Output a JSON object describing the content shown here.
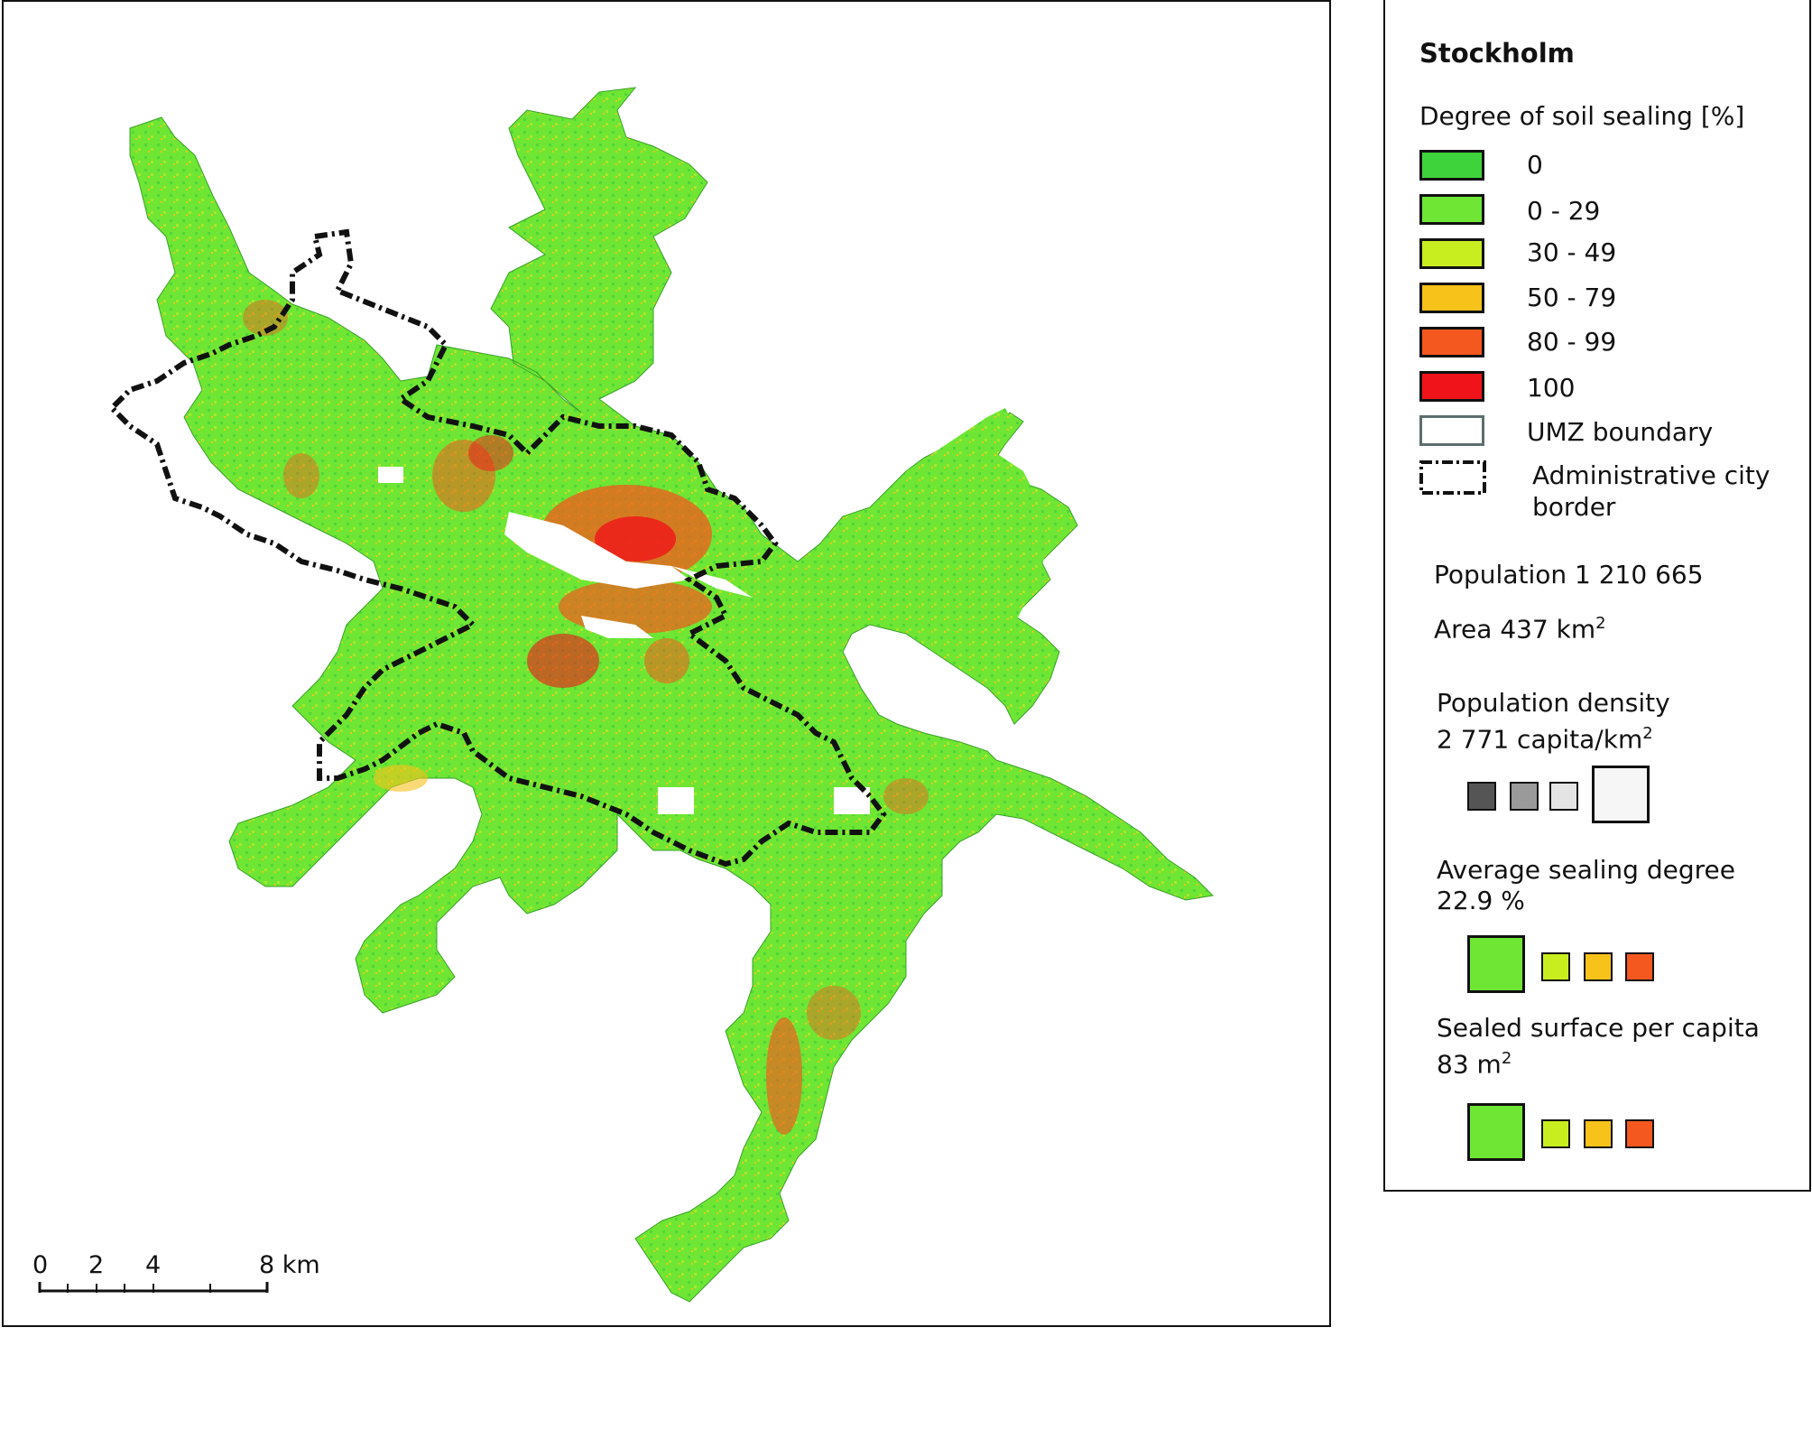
{
  "map": {
    "scalebar": {
      "ticks": [
        "0",
        "2",
        "4",
        "8 km"
      ]
    }
  },
  "legend": {
    "title": "Stockholm",
    "sealing_heading": "Degree of soil sealing [%]",
    "classes": [
      {
        "label": "0",
        "color": "#3fd33b"
      },
      {
        "label": "0 - 29",
        "color": "#6ee633"
      },
      {
        "label": "30 - 49",
        "color": "#c8ee20"
      },
      {
        "label": "50 - 79",
        "color": "#f7c21a"
      },
      {
        "label": "80 - 99",
        "color": "#f4581e"
      },
      {
        "label": "100",
        "color": "#f0141a"
      }
    ],
    "umz_label": "UMZ boundary",
    "admin_label_line1": "Administrative city",
    "admin_label_line2": "border",
    "population_label": "Population 1 210 665",
    "area_label": "Area 437 km",
    "area_sup": "2",
    "pop_density_heading": "Population density",
    "pop_density_value": "2 771 capita/km",
    "pop_density_sup": "2",
    "avg_sealing_heading": "Average sealing degree",
    "avg_sealing_value": "22.9 %",
    "sealed_per_capita_heading": "Sealed surface per capita",
    "sealed_per_capita_value": "83 m",
    "sealed_per_capita_sup": "2"
  }
}
